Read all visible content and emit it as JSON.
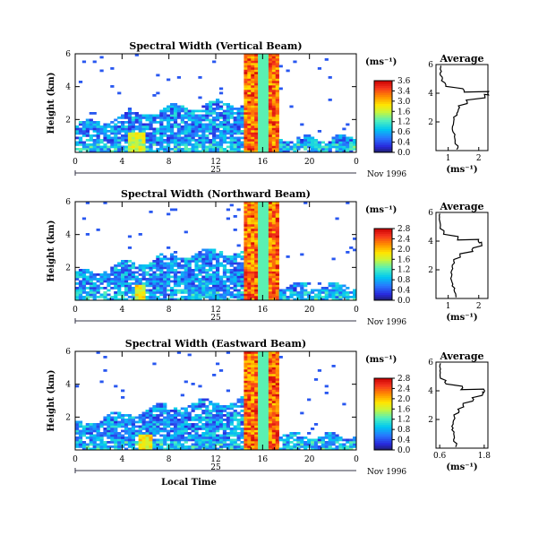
{
  "chart_data": [
    {
      "type": "heatmap",
      "title": "Spectral Width (Vertical Beam)",
      "ylabel": "Height (km)",
      "x_ticks": [
        "0",
        "4",
        "8",
        "12",
        "16",
        "20",
        "0"
      ],
      "y_ticks": [
        "2",
        "4",
        "6"
      ],
      "date_day": "25",
      "date_suffix": "Nov 1996",
      "xlim": [
        0,
        24
      ],
      "ylim": [
        0,
        6
      ],
      "colorbar": {
        "unit": "(ms⁻¹)",
        "labels": [
          "3.6",
          "3.4",
          "3.0",
          "1.6",
          "1.2",
          "0.6",
          "0.4",
          "0.0"
        ],
        "range": [
          0,
          3.6
        ]
      },
      "bursts": [
        {
          "x0": 14.5,
          "x1": 17.5,
          "top": 6.0,
          "value": 3.2
        },
        {
          "x0": 4.5,
          "x1": 6.0,
          "top": 1.2,
          "value": 2.2
        }
      ],
      "profile": {
        "title": "Average",
        "xlabel": "(ms⁻¹)",
        "x_ticks": [
          "1",
          "2"
        ],
        "y_ticks": [
          "2",
          "4",
          "6"
        ],
        "xlim": [
          0.6,
          2.3
        ],
        "ylim": [
          0,
          6
        ],
        "height": [
          0.2,
          0.6,
          1.0,
          1.4,
          1.8,
          2.2,
          2.6,
          3.0,
          3.4,
          3.8,
          4.0,
          4.2,
          4.6,
          5.0,
          5.4,
          5.8
        ],
        "width": [
          1.3,
          1.25,
          1.2,
          1.15,
          1.15,
          1.2,
          1.3,
          1.35,
          1.6,
          2.2,
          2.3,
          1.5,
          0.9,
          0.8,
          0.75,
          0.75
        ]
      }
    },
    {
      "type": "heatmap",
      "title": "Spectral Width (Northward Beam)",
      "ylabel": "Height (km)",
      "x_ticks": [
        "0",
        "4",
        "8",
        "12",
        "16",
        "20",
        "0"
      ],
      "y_ticks": [
        "2",
        "4",
        "6"
      ],
      "date_day": "25",
      "date_suffix": "Nov 1996",
      "xlim": [
        0,
        24
      ],
      "ylim": [
        0,
        6
      ],
      "colorbar": {
        "unit": "(ms⁻¹)",
        "labels": [
          "2.8",
          "2.4",
          "2.0",
          "1.6",
          "1.2",
          "0.8",
          "0.4",
          "0.0"
        ],
        "range": [
          0,
          2.8
        ]
      },
      "bursts": [
        {
          "x0": 14.5,
          "x1": 17.5,
          "top": 6.0,
          "value": 2.5
        },
        {
          "x0": 5.0,
          "x1": 6.0,
          "top": 0.9,
          "value": 1.9
        }
      ],
      "profile": {
        "title": "Average",
        "xlabel": "(ms⁻¹)",
        "x_ticks": [
          "1",
          "2"
        ],
        "y_ticks": [
          "2",
          "4",
          "6"
        ],
        "xlim": [
          0.6,
          2.3
        ],
        "ylim": [
          0,
          6
        ],
        "height": [
          0.2,
          0.6,
          1.0,
          1.4,
          1.8,
          2.2,
          2.6,
          3.0,
          3.4,
          3.8,
          4.0,
          4.2,
          4.6,
          5.0,
          5.4,
          5.8
        ],
        "width": [
          1.25,
          1.2,
          1.15,
          1.1,
          1.1,
          1.15,
          1.2,
          1.4,
          1.8,
          2.1,
          2.0,
          1.3,
          0.85,
          0.75,
          0.72,
          0.72
        ]
      }
    },
    {
      "type": "heatmap",
      "title": "Spectral Width (Eastward Beam)",
      "ylabel": "Height (km)",
      "x_ticks": [
        "0",
        "4",
        "8",
        "12",
        "16",
        "20",
        "0"
      ],
      "y_ticks": [
        "2",
        "4",
        "6"
      ],
      "date_day": "25",
      "date_suffix": "Nov 1996",
      "xlabel": "Local Time",
      "xlim": [
        0,
        24
      ],
      "ylim": [
        0,
        6
      ],
      "colorbar": {
        "unit": "(ms⁻¹)",
        "labels": [
          "2.8",
          "2.4",
          "2.0",
          "1.6",
          "1.2",
          "0.8",
          "0.4",
          "0.0"
        ],
        "range": [
          0,
          2.8
        ]
      },
      "bursts": [
        {
          "x0": 14.5,
          "x1": 17.5,
          "top": 6.0,
          "value": 2.5
        },
        {
          "x0": 5.5,
          "x1": 6.5,
          "top": 1.0,
          "value": 2.0
        }
      ],
      "profile": {
        "title": "Average",
        "xlabel": "(ms⁻¹)",
        "x_ticks": [
          "0.6",
          "1.8"
        ],
        "y_ticks": [
          "2",
          "4",
          "6"
        ],
        "xlim": [
          0.5,
          1.9
        ],
        "ylim": [
          0,
          6
        ],
        "height": [
          0.2,
          0.6,
          1.0,
          1.4,
          1.8,
          2.2,
          2.6,
          3.0,
          3.4,
          3.8,
          4.0,
          4.2,
          4.6,
          5.0,
          5.4,
          5.8
        ],
        "width": [
          1.05,
          1.0,
          0.98,
          0.95,
          0.95,
          1.0,
          1.1,
          1.25,
          1.5,
          1.75,
          1.8,
          1.2,
          0.75,
          0.62,
          0.6,
          0.6
        ]
      }
    }
  ]
}
